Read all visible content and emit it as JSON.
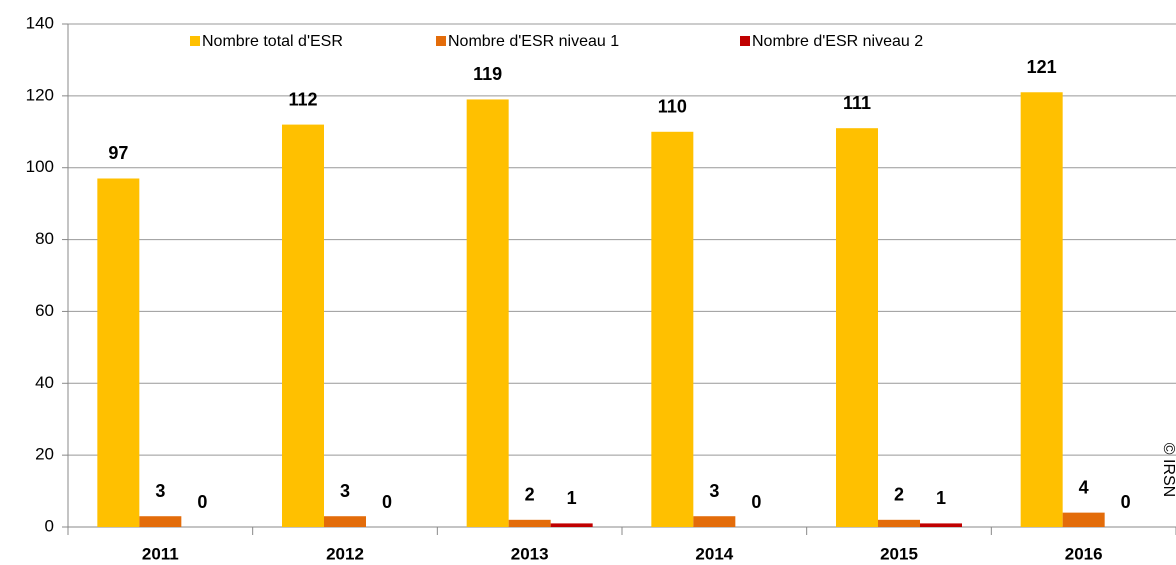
{
  "chart_data": {
    "type": "bar",
    "categories": [
      "2011",
      "2012",
      "2013",
      "2014",
      "2015",
      "2016"
    ],
    "series": [
      {
        "name": "Nombre total d'ESR",
        "color": "#FFC000",
        "values": [
          97,
          112,
          119,
          110,
          111,
          121
        ]
      },
      {
        "name": "Nombre d'ESR niveau 1",
        "color": "#E36C0A",
        "values": [
          3,
          3,
          2,
          3,
          2,
          4
        ]
      },
      {
        "name": "Nombre d'ESR niveau 2",
        "color": "#C00000",
        "values": [
          0,
          0,
          1,
          0,
          1,
          0
        ]
      }
    ],
    "ylim": [
      0,
      140
    ],
    "yticks": [
      0,
      20,
      40,
      60,
      80,
      100,
      120,
      140
    ],
    "grid": true,
    "legend": "top",
    "annotation": "© IRSN"
  }
}
